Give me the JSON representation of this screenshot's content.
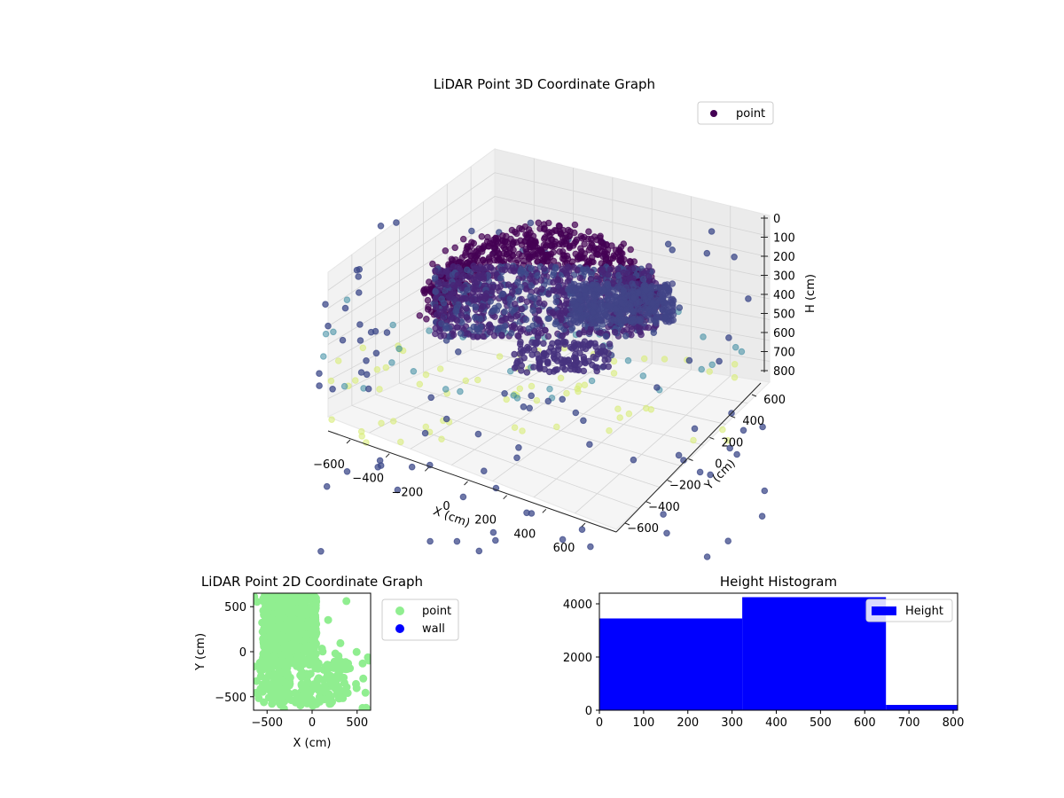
{
  "chart_data": [
    {
      "type": "scatter",
      "title": "LiDAR Point 3D Coordinate Graph",
      "xlabel": "X (cm)",
      "ylabel": "Y (cm)",
      "zlabel": "H (cm)",
      "xlim": [
        -700,
        700
      ],
      "ylim": [
        -700,
        700
      ],
      "zlim": [
        800,
        0
      ],
      "xticks": [
        "−600",
        "−400",
        "−200",
        "0",
        "200",
        "400",
        "600"
      ],
      "yticks": [
        "−600",
        "−400",
        "−200",
        "0",
        "200",
        "400",
        "600"
      ],
      "zticks": [
        "0",
        "100",
        "200",
        "300",
        "400",
        "500",
        "600",
        "700",
        "800"
      ],
      "legend": {
        "position": "top-right",
        "entries": [
          "point"
        ]
      },
      "colormap": "viridis",
      "grid": true
    },
    {
      "type": "scatter",
      "title": "LiDAR Point 2D Coordinate Graph",
      "xlabel": "X (cm)",
      "ylabel": "Y (cm)",
      "xlim": [
        -650,
        650
      ],
      "ylim": [
        -650,
        650
      ],
      "xticks": [
        "−500",
        "0",
        "500"
      ],
      "yticks": [
        "−500",
        "0",
        "500"
      ],
      "legend": {
        "position": "outside-right",
        "entries": [
          "point",
          "wall"
        ]
      },
      "series": [
        {
          "name": "point",
          "color": "#90ee90"
        },
        {
          "name": "wall",
          "color": "#0000ff"
        }
      ]
    },
    {
      "type": "bar",
      "title": "Height Histogram",
      "xlim": [
        0,
        810
      ],
      "ylim": [
        0,
        4400
      ],
      "xticks": [
        "0",
        "100",
        "200",
        "300",
        "400",
        "500",
        "600",
        "700",
        "800"
      ],
      "yticks": [
        "0",
        "2000",
        "4000"
      ],
      "legend": {
        "position": "top-right",
        "entries": [
          "Height"
        ]
      },
      "series": [
        {
          "name": "Height",
          "color": "#0000ff",
          "bins": [
            {
              "start": 0,
              "end": 323,
              "count": 3450
            },
            {
              "start": 323,
              "end": 648,
              "count": 4250
            },
            {
              "start": 648,
              "end": 810,
              "count": 200
            }
          ]
        }
      ]
    }
  ]
}
